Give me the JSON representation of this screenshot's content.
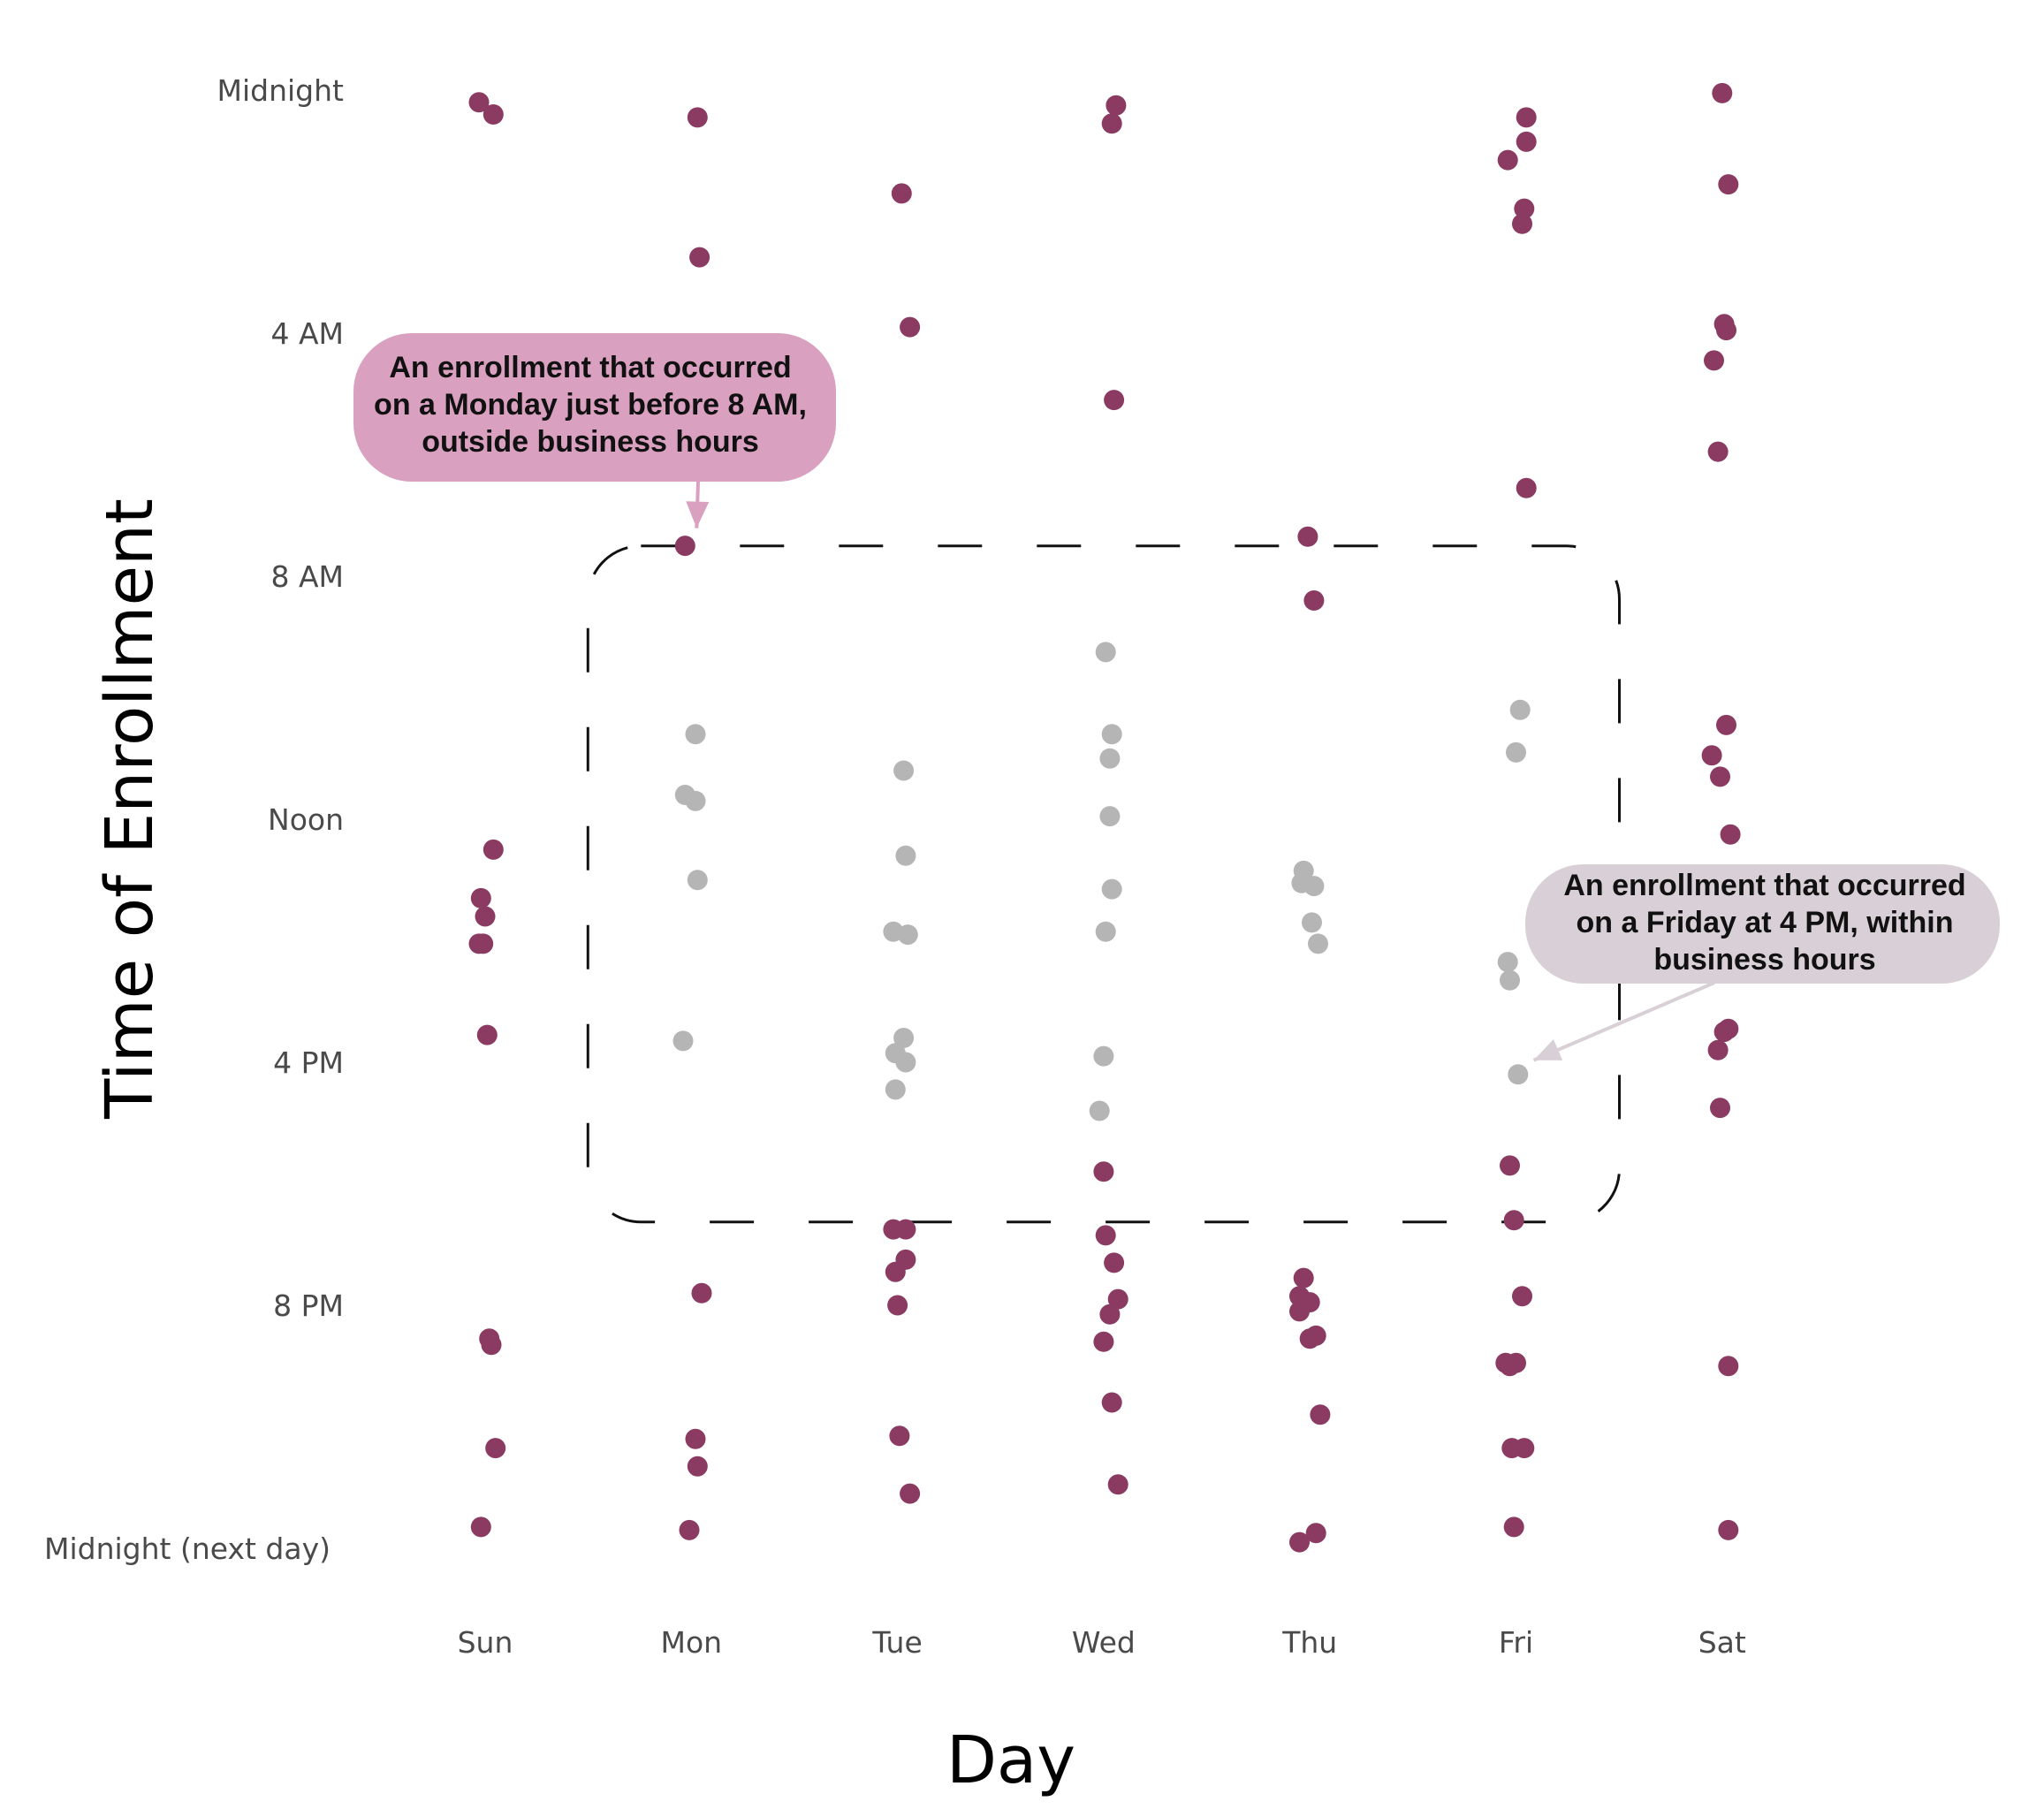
{
  "chart_data": {
    "type": "scatter",
    "xlabel": "Day",
    "ylabel": "Time of Enrollment",
    "categories": [
      "Sun",
      "Mon",
      "Tue",
      "Wed",
      "Thu",
      "Fri",
      "Sat"
    ],
    "y_ticks": [
      {
        "value": 0,
        "label": "Midnight"
      },
      {
        "value": 4,
        "label": "4 AM"
      },
      {
        "value": 8,
        "label": "8 AM"
      },
      {
        "value": 12,
        "label": "Noon"
      },
      {
        "value": 16,
        "label": "4 PM"
      },
      {
        "value": 20,
        "label": "8 PM"
      },
      {
        "value": 24,
        "label": "Midnight (next day)"
      }
    ],
    "y_range_hours": [
      0,
      24
    ],
    "y_direction": "downward",
    "grid": false,
    "colors": {
      "outside_business_hours": "#8b3a62",
      "within_business_hours": "#b5b5b5",
      "callout_monday": "#d9a0c0",
      "callout_friday": "#d8d0d6"
    },
    "business_hours_box": {
      "start_hour": 9,
      "end_hour": 17,
      "first_day": "Mon",
      "last_day": "Fri",
      "style": "dashed rounded rectangle"
    },
    "series": [
      {
        "group": "outside_business_hours",
        "points": [
          {
            "day": "Sun",
            "hour": 0.2,
            "jitter": -0.03
          },
          {
            "day": "Sun",
            "hour": 0.4,
            "jitter": 0.04
          },
          {
            "day": "Sun",
            "hour": 12.5,
            "jitter": 0.04
          },
          {
            "day": "Sun",
            "hour": 13.3,
            "jitter": -0.02
          },
          {
            "day": "Sun",
            "hour": 13.6,
            "jitter": 0.0
          },
          {
            "day": "Sun",
            "hour": 14.05,
            "jitter": -0.03
          },
          {
            "day": "Sun",
            "hour": 14.05,
            "jitter": -0.01
          },
          {
            "day": "Sun",
            "hour": 15.55,
            "jitter": 0.01
          },
          {
            "day": "Sun",
            "hour": 20.55,
            "jitter": 0.02
          },
          {
            "day": "Sun",
            "hour": 20.65,
            "jitter": 0.03
          },
          {
            "day": "Sun",
            "hour": 22.35,
            "jitter": 0.05
          },
          {
            "day": "Sun",
            "hour": 23.65,
            "jitter": -0.02
          },
          {
            "day": "Mon",
            "hour": 0.45,
            "jitter": 0.03
          },
          {
            "day": "Mon",
            "hour": 2.75,
            "jitter": 0.04
          },
          {
            "day": "Mon",
            "hour": 7.5,
            "jitter": -0.03
          },
          {
            "day": "Mon",
            "hour": 19.8,
            "jitter": 0.05
          },
          {
            "day": "Mon",
            "hour": 22.2,
            "jitter": 0.02
          },
          {
            "day": "Mon",
            "hour": 22.65,
            "jitter": 0.03
          },
          {
            "day": "Mon",
            "hour": 23.7,
            "jitter": -0.01
          },
          {
            "day": "Tue",
            "hour": 1.7,
            "jitter": 0.02
          },
          {
            "day": "Tue",
            "hour": 3.9,
            "jitter": 0.06
          },
          {
            "day": "Tue",
            "hour": 18.75,
            "jitter": -0.02
          },
          {
            "day": "Tue",
            "hour": 18.75,
            "jitter": 0.04
          },
          {
            "day": "Tue",
            "hour": 19.25,
            "jitter": 0.04
          },
          {
            "day": "Tue",
            "hour": 19.45,
            "jitter": -0.01
          },
          {
            "day": "Tue",
            "hour": 20.0,
            "jitter": 0.0
          },
          {
            "day": "Tue",
            "hour": 22.15,
            "jitter": 0.01
          },
          {
            "day": "Tue",
            "hour": 23.1,
            "jitter": 0.06
          },
          {
            "day": "Wed",
            "hour": 0.25,
            "jitter": 0.06
          },
          {
            "day": "Wed",
            "hour": 0.55,
            "jitter": 0.04
          },
          {
            "day": "Wed",
            "hour": 5.1,
            "jitter": 0.05
          },
          {
            "day": "Wed",
            "hour": 17.8,
            "jitter": 0.0
          },
          {
            "day": "Wed",
            "hour": 18.85,
            "jitter": 0.01
          },
          {
            "day": "Wed",
            "hour": 19.3,
            "jitter": 0.05
          },
          {
            "day": "Wed",
            "hour": 19.9,
            "jitter": 0.07
          },
          {
            "day": "Wed",
            "hour": 20.15,
            "jitter": 0.03
          },
          {
            "day": "Wed",
            "hour": 20.6,
            "jitter": 0.0
          },
          {
            "day": "Wed",
            "hour": 21.6,
            "jitter": 0.04
          },
          {
            "day": "Wed",
            "hour": 22.95,
            "jitter": 0.07
          },
          {
            "day": "Thu",
            "hour": 7.35,
            "jitter": -0.01
          },
          {
            "day": "Thu",
            "hour": 8.4,
            "jitter": 0.02
          },
          {
            "day": "Thu",
            "hour": 19.55,
            "jitter": -0.03
          },
          {
            "day": "Thu",
            "hour": 19.85,
            "jitter": -0.05
          },
          {
            "day": "Thu",
            "hour": 19.95,
            "jitter": 0.0
          },
          {
            "day": "Thu",
            "hour": 20.1,
            "jitter": -0.05
          },
          {
            "day": "Thu",
            "hour": 20.5,
            "jitter": 0.03
          },
          {
            "day": "Thu",
            "hour": 20.55,
            "jitter": 0.0
          },
          {
            "day": "Thu",
            "hour": 21.8,
            "jitter": 0.05
          },
          {
            "day": "Thu",
            "hour": 23.75,
            "jitter": 0.03
          },
          {
            "day": "Thu",
            "hour": 23.9,
            "jitter": -0.05
          },
          {
            "day": "Fri",
            "hour": 0.45,
            "jitter": 0.05
          },
          {
            "day": "Fri",
            "hour": 0.85,
            "jitter": 0.05
          },
          {
            "day": "Fri",
            "hour": 1.15,
            "jitter": -0.04
          },
          {
            "day": "Fri",
            "hour": 1.95,
            "jitter": 0.04
          },
          {
            "day": "Fri",
            "hour": 2.2,
            "jitter": 0.03
          },
          {
            "day": "Fri",
            "hour": 6.55,
            "jitter": 0.05
          },
          {
            "day": "Fri",
            "hour": 17.7,
            "jitter": -0.03
          },
          {
            "day": "Fri",
            "hour": 18.6,
            "jitter": -0.01
          },
          {
            "day": "Fri",
            "hour": 19.85,
            "jitter": 0.03
          },
          {
            "day": "Fri",
            "hour": 20.95,
            "jitter": -0.05
          },
          {
            "day": "Fri",
            "hour": 21.0,
            "jitter": -0.03
          },
          {
            "day": "Fri",
            "hour": 20.95,
            "jitter": 0.0
          },
          {
            "day": "Fri",
            "hour": 22.35,
            "jitter": -0.02
          },
          {
            "day": "Fri",
            "hour": 22.35,
            "jitter": 0.04
          },
          {
            "day": "Fri",
            "hour": 23.65,
            "jitter": -0.01
          },
          {
            "day": "Sat",
            "hour": 0.05,
            "jitter": 0.0
          },
          {
            "day": "Sat",
            "hour": 1.55,
            "jitter": 0.03
          },
          {
            "day": "Sat",
            "hour": 3.85,
            "jitter": 0.01
          },
          {
            "day": "Sat",
            "hour": 3.95,
            "jitter": 0.02
          },
          {
            "day": "Sat",
            "hour": 4.45,
            "jitter": -0.04
          },
          {
            "day": "Sat",
            "hour": 5.95,
            "jitter": -0.02
          },
          {
            "day": "Sat",
            "hour": 10.45,
            "jitter": 0.02
          },
          {
            "day": "Sat",
            "hour": 10.95,
            "jitter": -0.05
          },
          {
            "day": "Sat",
            "hour": 11.3,
            "jitter": -0.01
          },
          {
            "day": "Sat",
            "hour": 12.25,
            "jitter": 0.04
          },
          {
            "day": "Sat",
            "hour": 15.45,
            "jitter": 0.03
          },
          {
            "day": "Sat",
            "hour": 15.5,
            "jitter": 0.01
          },
          {
            "day": "Sat",
            "hour": 15.8,
            "jitter": -0.02
          },
          {
            "day": "Sat",
            "hour": 16.75,
            "jitter": -0.01
          },
          {
            "day": "Sat",
            "hour": 21.0,
            "jitter": 0.03
          },
          {
            "day": "Sat",
            "hour": 23.7,
            "jitter": 0.03
          }
        ]
      },
      {
        "group": "within_business_hours",
        "points": [
          {
            "day": "Mon",
            "hour": 10.6,
            "jitter": 0.02
          },
          {
            "day": "Mon",
            "hour": 11.6,
            "jitter": -0.03
          },
          {
            "day": "Mon",
            "hour": 11.7,
            "jitter": 0.02
          },
          {
            "day": "Mon",
            "hour": 13.0,
            "jitter": 0.03
          },
          {
            "day": "Mon",
            "hour": 15.65,
            "jitter": -0.04
          },
          {
            "day": "Tue",
            "hour": 11.2,
            "jitter": 0.03
          },
          {
            "day": "Tue",
            "hour": 12.6,
            "jitter": 0.04
          },
          {
            "day": "Tue",
            "hour": 13.85,
            "jitter": -0.02
          },
          {
            "day": "Tue",
            "hour": 13.9,
            "jitter": 0.05
          },
          {
            "day": "Tue",
            "hour": 15.6,
            "jitter": 0.03
          },
          {
            "day": "Tue",
            "hour": 15.85,
            "jitter": -0.01
          },
          {
            "day": "Tue",
            "hour": 16.0,
            "jitter": 0.04
          },
          {
            "day": "Tue",
            "hour": 16.45,
            "jitter": -0.01
          },
          {
            "day": "Wed",
            "hour": 9.25,
            "jitter": 0.01
          },
          {
            "day": "Wed",
            "hour": 10.6,
            "jitter": 0.04
          },
          {
            "day": "Wed",
            "hour": 11.0,
            "jitter": 0.03
          },
          {
            "day": "Wed",
            "hour": 11.95,
            "jitter": 0.03
          },
          {
            "day": "Wed",
            "hour": 13.15,
            "jitter": 0.04
          },
          {
            "day": "Wed",
            "hour": 13.85,
            "jitter": 0.01
          },
          {
            "day": "Wed",
            "hour": 15.9,
            "jitter": 0.0
          },
          {
            "day": "Wed",
            "hour": 16.8,
            "jitter": -0.02
          },
          {
            "day": "Thu",
            "hour": 12.85,
            "jitter": -0.03
          },
          {
            "day": "Thu",
            "hour": 13.05,
            "jitter": -0.04
          },
          {
            "day": "Thu",
            "hour": 13.1,
            "jitter": 0.02
          },
          {
            "day": "Thu",
            "hour": 13.7,
            "jitter": 0.01
          },
          {
            "day": "Thu",
            "hour": 14.05,
            "jitter": 0.04
          },
          {
            "day": "Fri",
            "hour": 10.2,
            "jitter": 0.02
          },
          {
            "day": "Fri",
            "hour": 10.9,
            "jitter": 0.0
          },
          {
            "day": "Fri",
            "hour": 14.35,
            "jitter": -0.04
          },
          {
            "day": "Fri",
            "hour": 14.65,
            "jitter": -0.03
          },
          {
            "day": "Fri",
            "hour": 16.2,
            "jitter": 0.01
          }
        ]
      }
    ],
    "annotations": [
      {
        "text_lines": [
          "An enrollment that occurred",
          "on a Monday just before 8 AM,",
          "outside business hours"
        ],
        "points_to": {
          "day": "Mon",
          "hour": 7.5
        }
      },
      {
        "text_lines": [
          "An enrollment that occurred",
          "on a Friday at 4 PM, within",
          "business hours"
        ],
        "points_to": {
          "day": "Fri",
          "hour": 16.2
        }
      }
    ]
  }
}
